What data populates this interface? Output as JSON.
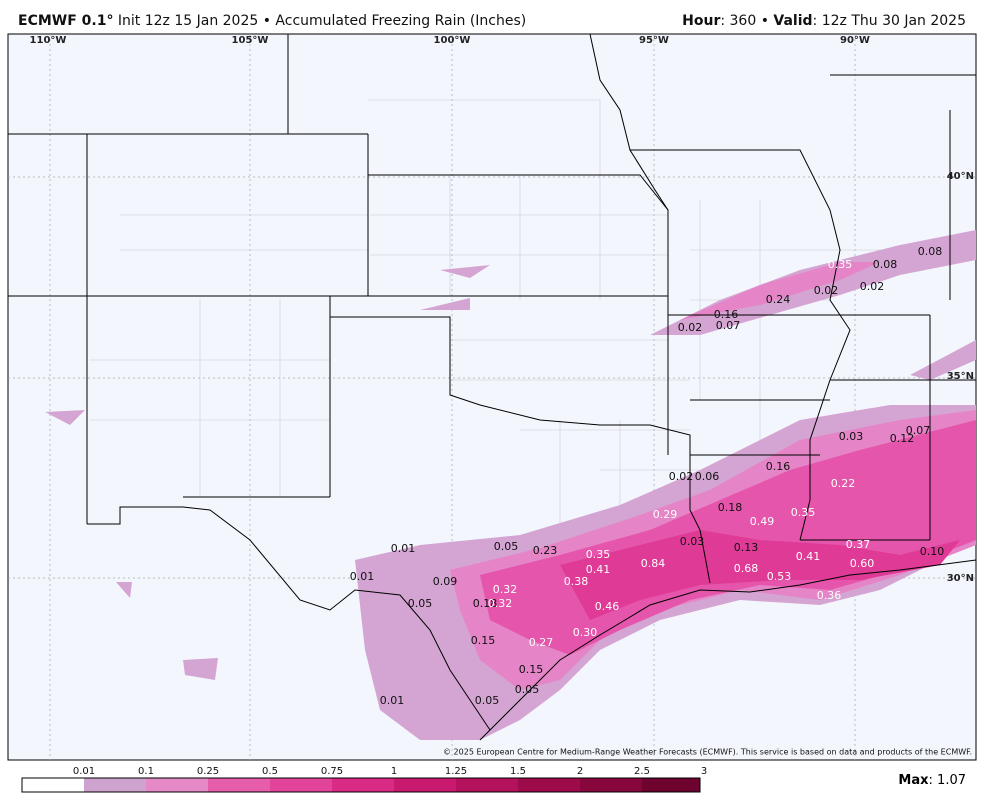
{
  "header": {
    "model": "ECMWF 0.1°",
    "description": "Init 12z 15 Jan 2025 • Accumulated Freezing Rain (Inches)",
    "hour_label": "Hour",
    "hour": ": 360 • ",
    "valid_label": "Valid",
    "valid": ": 12z Thu 30 Jan 2025"
  },
  "map": {
    "longitudes": [
      "110°W",
      "105°W",
      "100°W",
      "95°W",
      "90°W"
    ],
    "latitudes": [
      "40°N",
      "35°N",
      "30°N"
    ],
    "point_values": [
      "0.35",
      "0.08",
      "0.08",
      "0.02",
      "0.02",
      "0.24",
      "0.16",
      "0.07",
      "0.02",
      "0.03",
      "0.12",
      "0.07",
      "0.16",
      "0.02",
      "0.06",
      "0.22",
      "0.29",
      "0.18",
      "0.49",
      "0.35",
      "0.03",
      "0.13",
      "0.41",
      "0.37",
      "0.10",
      "0.60",
      "0.68",
      "0.53",
      "0.36",
      "0.84",
      "0.01",
      "0.05",
      "0.23",
      "0.35",
      "0.41",
      "0.01",
      "0.09",
      "0.38",
      "0.32",
      "0.05",
      "0.18",
      "0.32",
      "0.46",
      "0.15",
      "0.27",
      "0.30",
      "0.15",
      "0.05",
      "0.05",
      "0.01"
    ],
    "copyright": "© 2025 European Centre for Medium-Range Weather Forecasts (ECMWF). This service is based on data and products of the ECMWF."
  },
  "legend": {
    "ticks": [
      "0.01",
      "0.1",
      "0.25",
      "0.5",
      "0.75",
      "1",
      "1.25",
      "1.5",
      "2",
      "2.5",
      "3"
    ],
    "max_label": "Max",
    "max_value": ": 1.07"
  }
}
